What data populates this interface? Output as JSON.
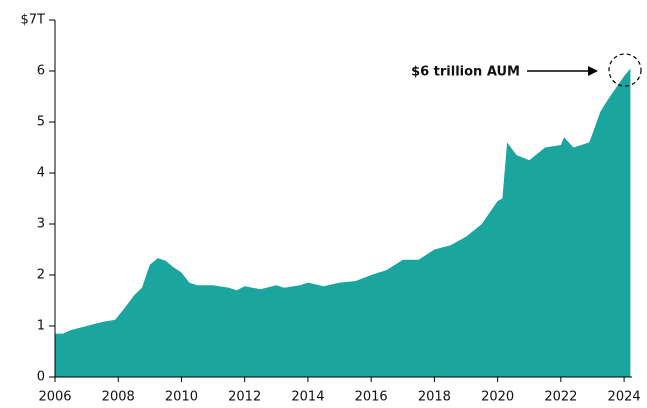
{
  "chart_data": {
    "type": "area",
    "color": "#1aa59e",
    "annotation": "$6 trillion AUM",
    "x": [
      2006.0,
      2006.25,
      2006.5,
      2007.0,
      2007.5,
      2007.9,
      2008.2,
      2008.5,
      2008.75,
      2009.0,
      2009.25,
      2009.5,
      2009.75,
      2010.0,
      2010.25,
      2010.5,
      2011.0,
      2011.5,
      2011.75,
      2012.0,
      2012.5,
      2013.0,
      2013.25,
      2013.75,
      2014.0,
      2014.5,
      2015.0,
      2015.5,
      2016.0,
      2016.5,
      2017.0,
      2017.5,
      2018.0,
      2018.5,
      2019.0,
      2019.5,
      2020.0,
      2020.15,
      2020.3,
      2020.6,
      2021.0,
      2021.5,
      2022.0,
      2022.1,
      2022.4,
      2022.9,
      2023.25,
      2023.5,
      2024.0,
      2024.2
    ],
    "values": [
      0.85,
      0.85,
      0.92,
      1.0,
      1.08,
      1.12,
      1.35,
      1.6,
      1.75,
      2.2,
      2.33,
      2.28,
      2.15,
      2.05,
      1.85,
      1.8,
      1.8,
      1.75,
      1.7,
      1.78,
      1.72,
      1.8,
      1.75,
      1.8,
      1.85,
      1.78,
      1.85,
      1.88,
      2.0,
      2.1,
      2.3,
      2.3,
      2.5,
      2.58,
      2.75,
      3.0,
      3.45,
      3.5,
      4.6,
      4.35,
      4.25,
      4.5,
      4.55,
      4.7,
      4.5,
      4.6,
      5.2,
      5.45,
      5.9,
      6.05
    ],
    "xlim": [
      2006,
      2024.25
    ],
    "xticks": [
      2006,
      2008,
      2010,
      2012,
      2014,
      2016,
      2018,
      2020,
      2022,
      2024
    ],
    "ylim": [
      0,
      7
    ],
    "yticks": [
      0,
      1,
      2,
      3,
      4,
      5,
      6,
      {
        "value": 7,
        "label": "$7T"
      }
    ]
  }
}
